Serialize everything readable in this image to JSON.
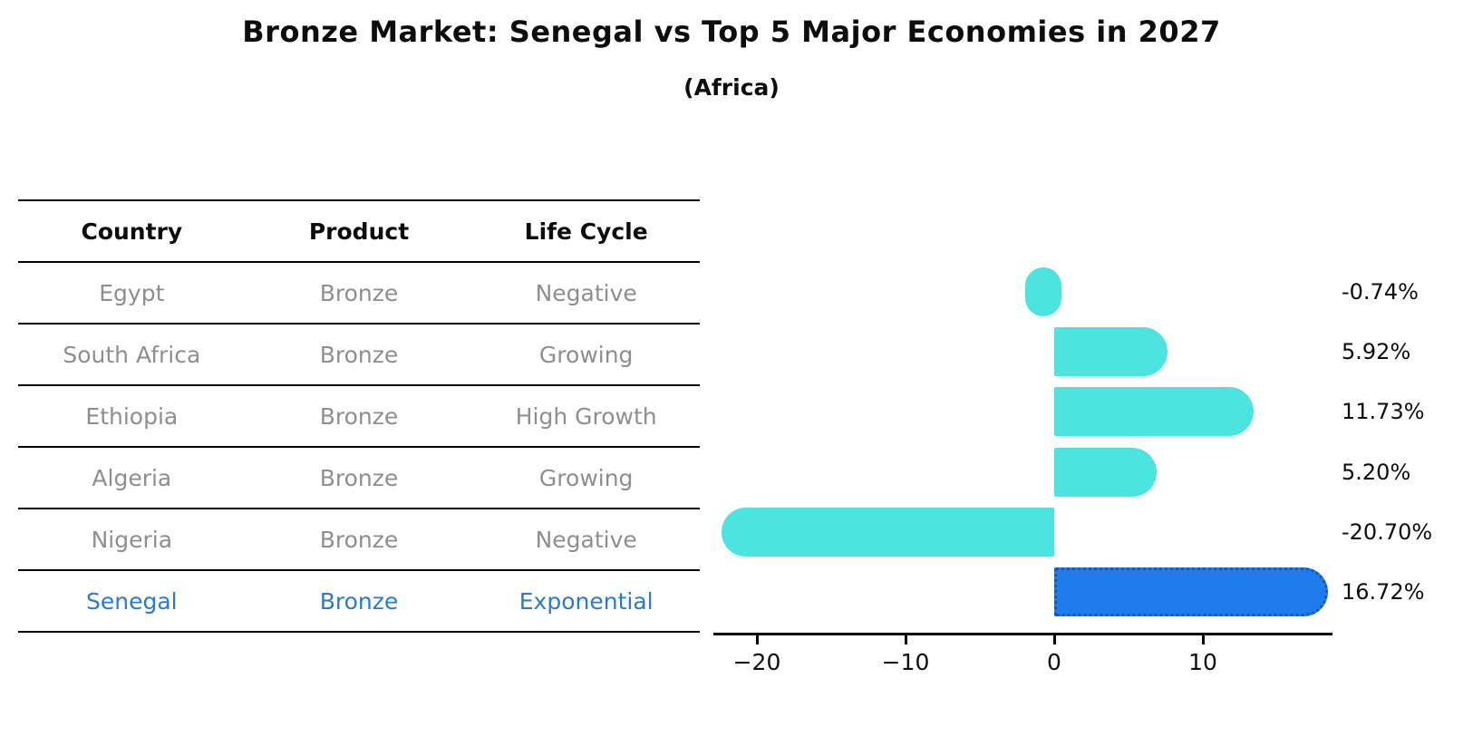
{
  "title": "Bronze Market: Senegal vs Top 5 Major Economies in 2027",
  "subtitle": "(Africa)",
  "table": {
    "headers": [
      "Country",
      "Product",
      "Life Cycle"
    ],
    "rows": [
      {
        "country": "Egypt",
        "product": "Bronze",
        "life_cycle": "Negative",
        "highlight": false
      },
      {
        "country": "South Africa",
        "product": "Bronze",
        "life_cycle": "Growing",
        "highlight": false
      },
      {
        "country": "Ethiopia",
        "product": "Bronze",
        "life_cycle": "High Growth",
        "highlight": false
      },
      {
        "country": "Algeria",
        "product": "Bronze",
        "life_cycle": "Growing",
        "highlight": false
      },
      {
        "country": "Nigeria",
        "product": "Bronze",
        "life_cycle": "Negative",
        "highlight": false
      },
      {
        "country": "Senegal",
        "product": "Bronze",
        "life_cycle": "Exponential",
        "highlight": true
      }
    ]
  },
  "chart_data": {
    "type": "bar",
    "orientation": "horizontal",
    "title": "Bronze Market: Senegal vs Top 5 Major Economies in 2027 (Africa)",
    "categories": [
      "Egypt",
      "South Africa",
      "Ethiopia",
      "Algeria",
      "Nigeria",
      "Senegal"
    ],
    "values": [
      -0.74,
      5.92,
      11.73,
      5.2,
      -20.7,
      16.72
    ],
    "value_labels": [
      "-0.74%",
      "5.92%",
      "11.73%",
      "5.20%",
      "-20.70%",
      "16.72%"
    ],
    "unit": "%",
    "xticks": {
      "labels": [
        "−20",
        "−10",
        "0",
        "10"
      ],
      "values": [
        -20,
        -10,
        0,
        10
      ]
    },
    "xlim": [
      -23,
      18.6
    ],
    "grid": false,
    "legend": "none",
    "highlight_index": 5,
    "colors": {
      "bar": "#4BE4DE",
      "highlight_bar": "#1F7CEB",
      "highlight_border": "#1256C8"
    }
  },
  "colors": {
    "text": "#0D0D0D",
    "muted_text": "#8E8E8E",
    "highlight_text": "#2B7AD2",
    "line": "#000000"
  }
}
